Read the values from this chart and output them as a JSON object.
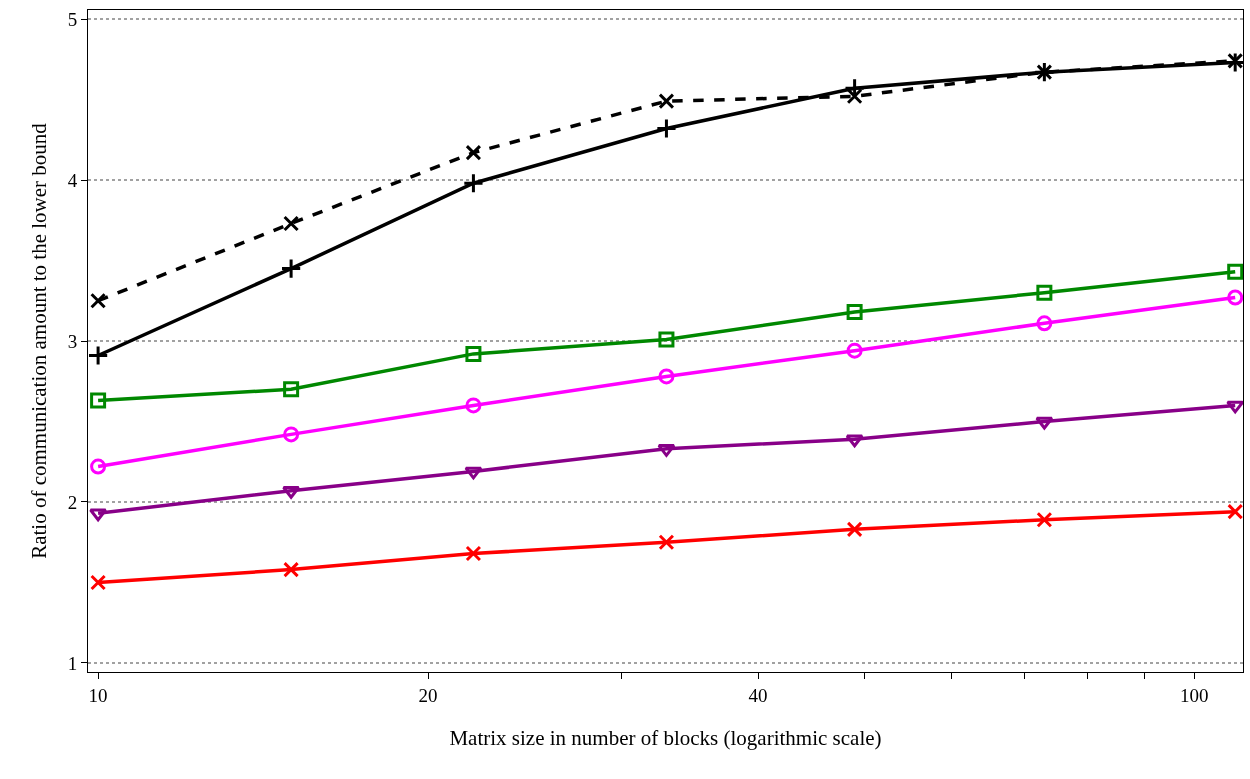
{
  "chart_data": {
    "type": "line",
    "xlabel": "Matrix size in number of blocks (logarithmic scale)",
    "ylabel": "Ratio of communication amount to the lower bound",
    "x": [
      10,
      15,
      22,
      33,
      49,
      73,
      109
    ],
    "series": [
      {
        "color": "#000000",
        "marker": "x",
        "line_style": "dashed",
        "values": [
          3.25,
          3.73,
          4.17,
          4.49,
          4.52,
          4.67,
          4.74
        ]
      },
      {
        "color": "#000000",
        "marker": "cross",
        "line_style": "solid",
        "values": [
          2.91,
          3.45,
          3.98,
          4.32,
          4.57,
          4.67,
          4.73
        ]
      },
      {
        "color": "#008800",
        "marker": "square",
        "line_style": "solid",
        "values": [
          2.63,
          2.7,
          2.92,
          3.01,
          3.18,
          3.3,
          3.43
        ]
      },
      {
        "color": "#ff00ff",
        "marker": "circle",
        "line_style": "solid",
        "values": [
          2.22,
          2.42,
          2.6,
          2.78,
          2.94,
          3.11,
          3.27
        ]
      },
      {
        "color": "#880088",
        "marker": "triangle",
        "line_style": "solid",
        "values": [
          1.93,
          2.07,
          2.19,
          2.33,
          2.39,
          2.5,
          2.6
        ]
      },
      {
        "color": "#ff0000",
        "marker": "x",
        "line_style": "solid",
        "values": [
          1.5,
          1.58,
          1.68,
          1.75,
          1.83,
          1.89,
          1.94
        ]
      }
    ],
    "log": "x",
    "xlim": [
      9.79,
      110.8
    ],
    "ylim": [
      0.944,
      5.056
    ],
    "xticks": [
      10,
      20,
      {
        "value": 30,
        "label": null
      },
      40,
      {
        "value": 50,
        "label": null
      },
      {
        "value": 60,
        "label": null
      },
      {
        "value": 70,
        "label": null
      },
      {
        "value": 80,
        "label": null
      },
      {
        "value": 90,
        "label": null
      },
      100
    ],
    "yticks": [
      1,
      2,
      3,
      4,
      5
    ],
    "grid": true
  }
}
